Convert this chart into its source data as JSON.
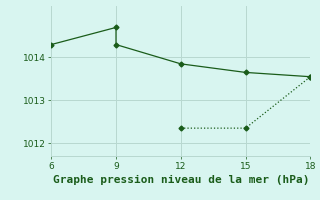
{
  "solid_line_x": [
    6,
    9,
    9,
    12,
    15,
    18
  ],
  "solid_line_y": [
    1014.3,
    1014.7,
    1014.3,
    1013.85,
    1013.65,
    1013.55
  ],
  "dotted_line_x": [
    12,
    15,
    18
  ],
  "dotted_line_y": [
    1012.35,
    1012.35,
    1013.55
  ],
  "line_color": "#1a5c1a",
  "bg_color": "#d8f5f0",
  "grid_color": "#b8d8d0",
  "xlabel": "Graphe pression niveau de la mer (hPa)",
  "xlabel_color": "#1a5c1a",
  "xlim": [
    6,
    18
  ],
  "ylim": [
    1011.7,
    1015.2
  ],
  "xticks": [
    6,
    9,
    12,
    15,
    18
  ],
  "yticks": [
    1012,
    1013,
    1014
  ],
  "tick_fontsize": 6.5,
  "xlabel_fontsize": 8,
  "marker": "D",
  "marker_size": 2.5
}
